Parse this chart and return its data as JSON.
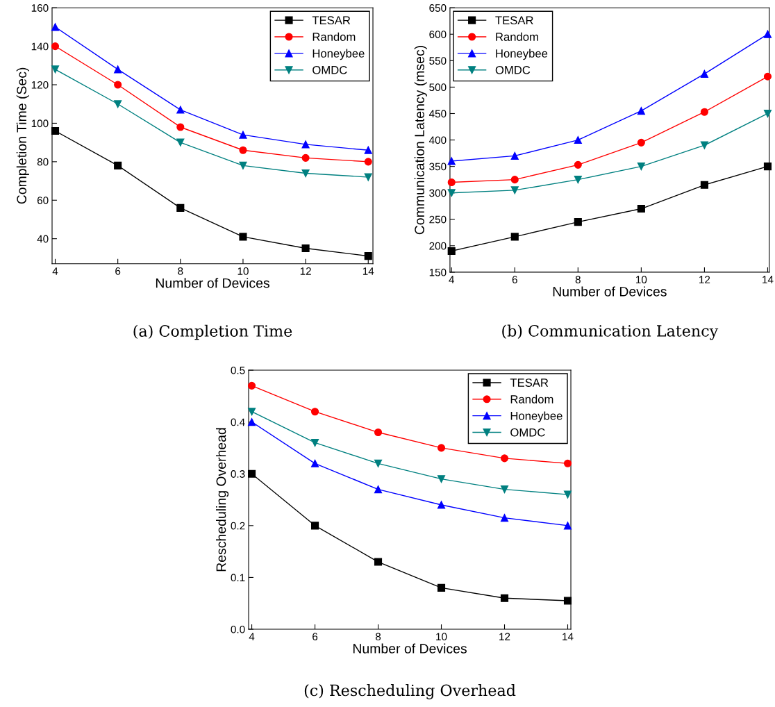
{
  "chart_data": [
    {
      "type": "line",
      "title": "(a) Completion Time",
      "xlabel": "Number of Devices",
      "ylabel": "Completion Time (Sec)",
      "x": [
        4,
        6,
        8,
        10,
        12,
        14
      ],
      "xlim": [
        3.9,
        14.15
      ],
      "xticks": [
        4,
        6,
        8,
        10,
        12,
        14
      ],
      "ylim": [
        27,
        160
      ],
      "yticks": [
        40,
        60,
        80,
        100,
        120,
        140,
        160
      ],
      "legend": "top right",
      "grid": false,
      "series": [
        {
          "name": "TESAR",
          "color": "#000000",
          "marker": "square",
          "values": [
            96,
            78,
            56,
            41,
            35,
            31
          ]
        },
        {
          "name": "Random",
          "color": "#ff0000",
          "marker": "circle",
          "values": [
            140,
            120,
            98,
            86,
            82,
            80
          ]
        },
        {
          "name": "Honeybee",
          "color": "#0000ff",
          "marker": "triangle",
          "values": [
            150,
            128,
            107,
            94,
            89,
            86
          ]
        },
        {
          "name": "OMDC",
          "color": "#008080",
          "marker": "triangle_down",
          "values": [
            128,
            110,
            90,
            78,
            74,
            72
          ]
        }
      ]
    },
    {
      "type": "line",
      "title": "(b) Communication Latency",
      "xlabel": "Number of Devices",
      "ylabel": "Communication Latency (msec)",
      "x": [
        4,
        6,
        8,
        10,
        12,
        14
      ],
      "xlim": [
        3.95,
        14.05
      ],
      "xticks": [
        4,
        6,
        8,
        10,
        12,
        14
      ],
      "ylim": [
        150,
        650
      ],
      "yticks": [
        150,
        200,
        250,
        300,
        350,
        400,
        450,
        500,
        550,
        600,
        650
      ],
      "legend": "top left",
      "grid": false,
      "series": [
        {
          "name": "TESAR",
          "color": "#000000",
          "marker": "square",
          "values": [
            190,
            217,
            245,
            270,
            315,
            350
          ]
        },
        {
          "name": "Random",
          "color": "#ff0000",
          "marker": "circle",
          "values": [
            320,
            325,
            353,
            395,
            453,
            520
          ]
        },
        {
          "name": "Honeybee",
          "color": "#0000ff",
          "marker": "triangle",
          "values": [
            360,
            370,
            400,
            455,
            525,
            600
          ]
        },
        {
          "name": "OMDC",
          "color": "#008080",
          "marker": "triangle_down",
          "values": [
            300,
            305,
            325,
            350,
            390,
            450
          ]
        }
      ]
    },
    {
      "type": "line",
      "title": "(c) Rescheduling Overhead",
      "xlabel": "Number of Devices",
      "ylabel": "Rescheduling Overhead",
      "x": [
        4,
        6,
        8,
        10,
        12,
        14
      ],
      "xlim": [
        3.9,
        14.1
      ],
      "xticks": [
        4,
        6,
        8,
        10,
        12,
        14
      ],
      "ylim": [
        0,
        0.5
      ],
      "yticks": [
        {
          "value": 0,
          "label": "0.0"
        },
        0.1,
        0.2,
        0.3,
        0.4,
        0.5
      ],
      "legend": "top right",
      "grid": false,
      "series": [
        {
          "name": "TESAR",
          "color": "#000000",
          "marker": "square",
          "values": [
            0.3,
            0.2,
            0.13,
            0.08,
            0.06,
            0.055
          ]
        },
        {
          "name": "Random",
          "color": "#ff0000",
          "marker": "circle",
          "values": [
            0.47,
            0.42,
            0.38,
            0.35,
            0.33,
            0.32
          ]
        },
        {
          "name": "Honeybee",
          "color": "#0000ff",
          "marker": "triangle",
          "values": [
            0.4,
            0.32,
            0.27,
            0.24,
            0.215,
            0.2
          ]
        },
        {
          "name": "OMDC",
          "color": "#008080",
          "marker": "triangle_down",
          "values": [
            0.42,
            0.36,
            0.32,
            0.29,
            0.27,
            0.26
          ]
        }
      ]
    }
  ]
}
